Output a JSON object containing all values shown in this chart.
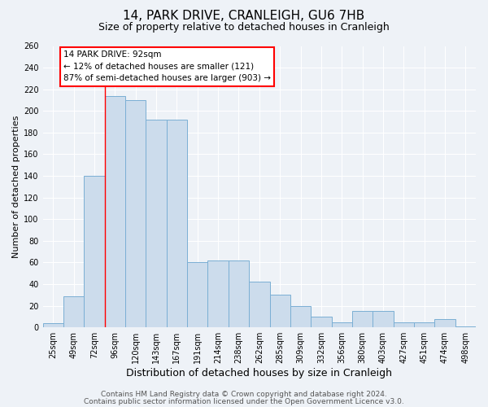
{
  "title": "14, PARK DRIVE, CRANLEIGH, GU6 7HB",
  "subtitle": "Size of property relative to detached houses in Cranleigh",
  "xlabel": "Distribution of detached houses by size in Cranleigh",
  "ylabel": "Number of detached properties",
  "bin_labels": [
    "25sqm",
    "49sqm",
    "72sqm",
    "96sqm",
    "120sqm",
    "143sqm",
    "167sqm",
    "191sqm",
    "214sqm",
    "238sqm",
    "262sqm",
    "285sqm",
    "309sqm",
    "332sqm",
    "356sqm",
    "380sqm",
    "403sqm",
    "427sqm",
    "451sqm",
    "474sqm",
    "498sqm"
  ],
  "bar_values": [
    4,
    29,
    140,
    214,
    210,
    192,
    192,
    60,
    62,
    62,
    42,
    30,
    20,
    10,
    5,
    15,
    15,
    5,
    5,
    8,
    1
  ],
  "bar_color": "#ccdcec",
  "bar_edgecolor": "#7aafd4",
  "ylim": [
    0,
    260
  ],
  "yticks": [
    0,
    20,
    40,
    60,
    80,
    100,
    120,
    140,
    160,
    180,
    200,
    220,
    240,
    260
  ],
  "red_line_bin_index": 3,
  "annotation_title": "14 PARK DRIVE: 92sqm",
  "annotation_line1": "← 12% of detached houses are smaller (121)",
  "annotation_line2": "87% of semi-detached houses are larger (903) →",
  "footer_line1": "Contains HM Land Registry data © Crown copyright and database right 2024.",
  "footer_line2": "Contains public sector information licensed under the Open Government Licence v3.0.",
  "background_color": "#eef2f7",
  "grid_color": "#ffffff",
  "title_fontsize": 11,
  "subtitle_fontsize": 9,
  "xlabel_fontsize": 9,
  "ylabel_fontsize": 8,
  "tick_fontsize": 7,
  "annotation_fontsize": 7.5,
  "footer_fontsize": 6.5
}
